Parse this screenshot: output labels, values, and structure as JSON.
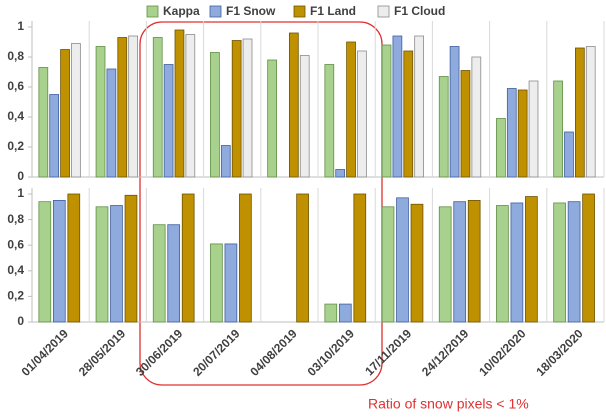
{
  "chart_data": [
    {
      "type": "bar",
      "series": [
        {
          "name": "Kappa",
          "color": "#a9d18e",
          "values": [
            0.73,
            0.87,
            0.93,
            0.83,
            0.78,
            0.75,
            0.88,
            0.67,
            0.39,
            0.64
          ]
        },
        {
          "name": "F1 Snow",
          "color": "#8faadc",
          "values": [
            0.55,
            0.72,
            0.75,
            0.21,
            null,
            0.05,
            0.94,
            0.87,
            0.59,
            0.3
          ]
        },
        {
          "name": "F1 Land",
          "color": "#bf9000",
          "values": [
            0.85,
            0.93,
            0.98,
            0.91,
            0.96,
            0.9,
            0.84,
            0.71,
            0.58,
            0.86
          ]
        },
        {
          "name": "F1 Cloud",
          "color": "#ededed",
          "values": [
            0.89,
            0.94,
            0.95,
            0.92,
            0.81,
            0.84,
            0.94,
            0.8,
            0.64,
            0.87
          ]
        }
      ],
      "ylim": [
        0,
        1
      ],
      "yticks": [
        0,
        {
          "value": 0.2,
          "label": "0,2"
        },
        {
          "value": 0.4,
          "label": "0,4"
        },
        {
          "value": 0.6,
          "label": "0,6"
        },
        {
          "value": 0.8,
          "label": "0,8"
        },
        1
      ],
      "annotation": "Ratio of snow pixels < 1%"
    },
    {
      "type": "bar",
      "categories": [
        "01/04/2019",
        "28/05/2019",
        "30/06/2019",
        "20/07/2019",
        "04/08/2019",
        "03/10/2019",
        "17/11/2019",
        "24/12/2019",
        "10/02/2020",
        "18/03/2020"
      ],
      "series": [
        {
          "color": "#a9d18e",
          "values": [
            0.94,
            0.9,
            0.76,
            0.61,
            null,
            0.14,
            0.9,
            0.9,
            0.91,
            0.93
          ]
        },
        {
          "color": "#8faadc",
          "values": [
            0.95,
            0.91,
            0.76,
            0.61,
            null,
            0.14,
            0.97,
            0.94,
            0.93,
            0.94
          ]
        },
        {
          "color": "#bf9000",
          "values": [
            1.0,
            0.99,
            1.0,
            1.0,
            1.0,
            1.0,
            0.92,
            0.95,
            0.98,
            1.0
          ]
        }
      ],
      "ylim": [
        0,
        1
      ],
      "yticks": [
        0,
        {
          "value": 0.2,
          "label": "0,2"
        },
        {
          "value": 0.4,
          "label": "0,4"
        },
        {
          "value": 0.6,
          "label": "0,6"
        },
        {
          "value": 0.8,
          "label": "0,8"
        },
        1
      ]
    }
  ]
}
